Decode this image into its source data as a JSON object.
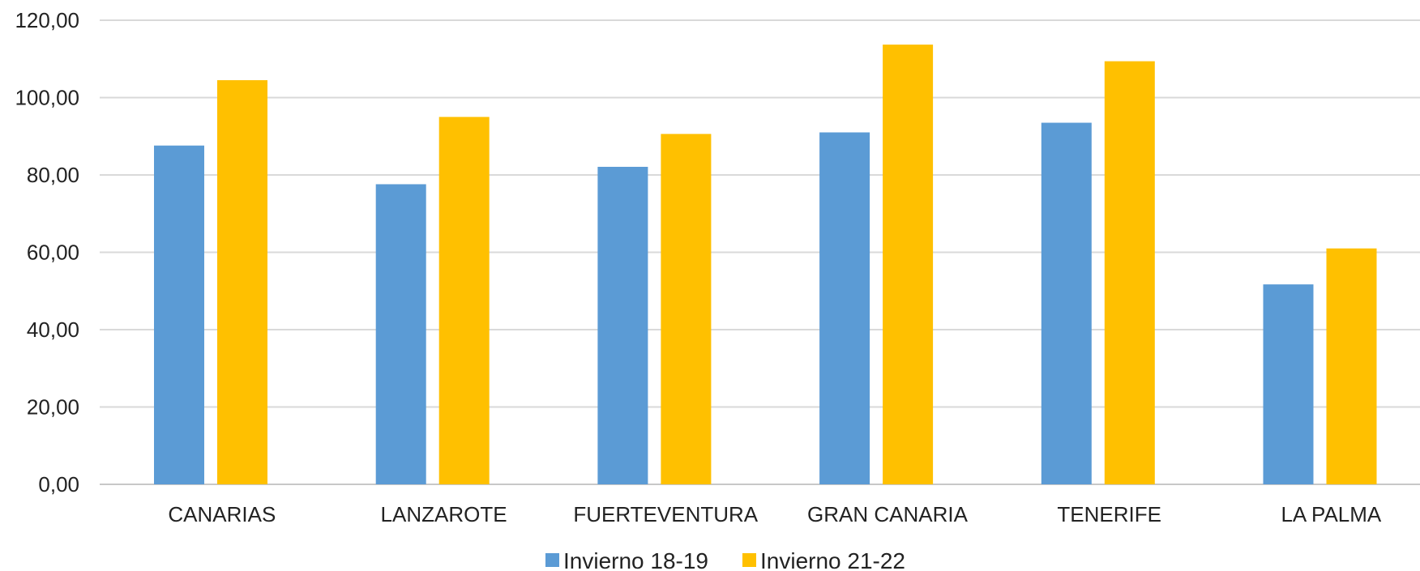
{
  "chart_data": {
    "type": "bar",
    "categories": [
      "CANARIAS",
      "LANZAROTE",
      "FUERTEVENTURA",
      "GRAN CANARIA",
      "TENERIFE",
      "LA PALMA"
    ],
    "series": [
      {
        "name": "Invierno 18-19",
        "color": "#5B9BD5",
        "values": [
          87.6,
          77.6,
          82.1,
          91.0,
          93.5,
          51.7
        ]
      },
      {
        "name": "Invierno 21-22",
        "color": "#FFC000",
        "values": [
          104.5,
          95.0,
          90.6,
          113.7,
          109.4,
          61.0
        ]
      }
    ],
    "yticks": [
      "0,00",
      "20,00",
      "40,00",
      "60,00",
      "80,00",
      "100,00",
      "120,00"
    ],
    "ylim": [
      0,
      120
    ],
    "grid": true,
    "legend_position": "bottom"
  }
}
